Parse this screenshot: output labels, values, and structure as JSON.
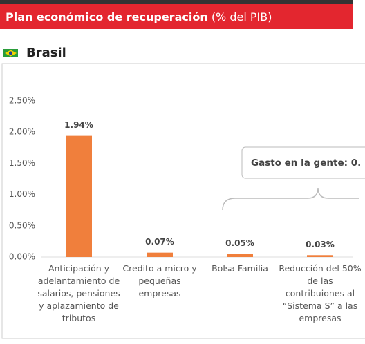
{
  "chart_data": {
    "type": "bar",
    "title": "Plan económico de recuperación",
    "title_unit": "(% del PIB)",
    "country": "Brasil",
    "annotation": "Gasto en la gente: 0.",
    "categories": [
      "Anticipación y\nadelantamiento de\nsalarios, pensiones\ny  aplazamiento de\ntributos",
      "Credito a micro y\npequeñas\nempresas",
      "Bolsa Familia",
      "Reducción del 50%\nde las\ncontribuiones al\n“Sistema S” a las\nempresas"
    ],
    "values": [
      1.94,
      0.07,
      0.05,
      0.03
    ],
    "value_labels": [
      "1.94%",
      "0.07%",
      "0.05%",
      "0.03%"
    ],
    "color": "#f07f3c",
    "ylim": [
      0,
      2.5
    ],
    "yticks": [
      {
        "value": 0,
        "label": "0.00%"
      },
      {
        "value": 0.5,
        "label": "0.50%"
      },
      {
        "value": 1,
        "label": "1.00%"
      },
      {
        "value": 1.5,
        "label": "1.50%"
      },
      {
        "value": 2,
        "label": "2.00%"
      },
      {
        "value": 2.5,
        "label": "2.50%"
      }
    ],
    "grid": false
  }
}
